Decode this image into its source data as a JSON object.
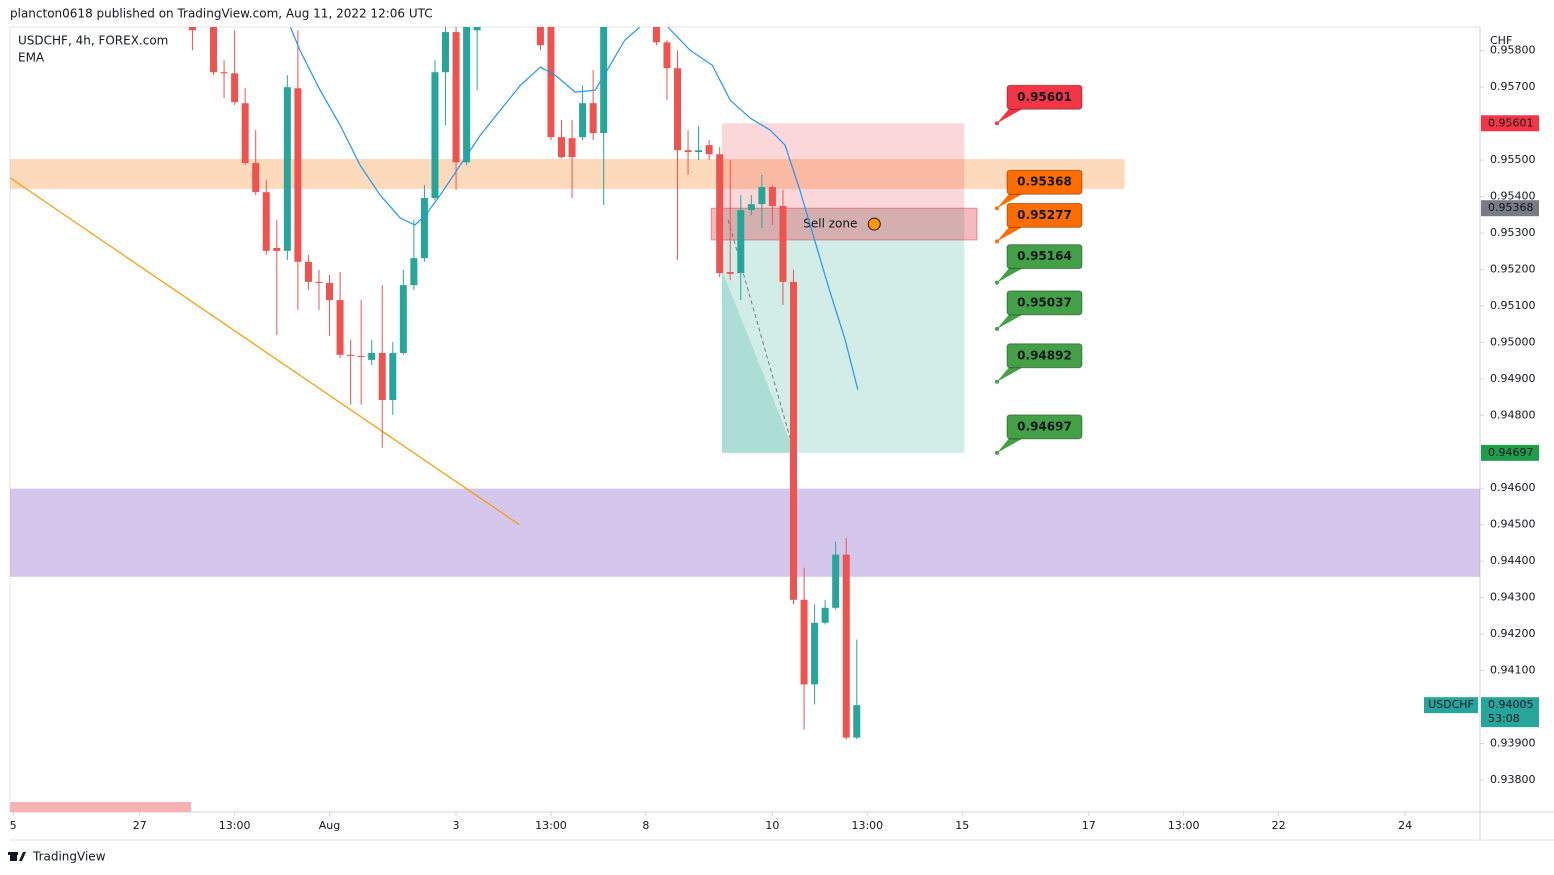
{
  "header": "plancton0618 published on TradingView.com, Aug 11, 2022 12:06 UTC",
  "footer": "TradingView",
  "chart_data": {
    "type": "candlestick",
    "title": "USDCHF, 4h, FOREX.com",
    "currency": "CHF",
    "up_color": "#26a69a",
    "down_color": "#ef5350",
    "x": [
      17,
      19,
      20,
      21,
      22,
      23,
      24,
      25,
      26,
      27,
      28,
      29,
      30,
      31,
      32,
      33,
      34,
      35,
      36,
      37,
      38,
      39,
      40,
      41,
      42,
      43,
      44,
      50,
      51,
      52,
      53,
      54,
      55,
      56,
      61,
      62,
      63,
      64,
      65,
      66,
      67,
      68,
      69,
      70,
      71,
      72,
      73,
      74,
      75,
      76,
      77,
      78,
      79,
      80
    ],
    "open": [
      0.95911,
      0.95884,
      0.95741,
      0.95738,
      0.95656,
      0.95492,
      0.95412,
      0.95259,
      0.95251,
      0.95697,
      0.95221,
      0.95166,
      0.95163,
      0.95116,
      0.94966,
      0.94963,
      0.94952,
      0.94971,
      0.94842,
      0.94971,
      0.95157,
      0.95231,
      0.95396,
      0.95741,
      0.95851,
      0.95494,
      0.95856,
      0.95884,
      0.95884,
      0.95563,
      0.9556,
      0.95563,
      0.95656,
      0.95574,
      0.95884,
      0.95823,
      0.95752,
      0.95527,
      0.95522,
      0.95541,
      0.95516,
      0.95193,
      0.9519,
      0.95363,
      0.95379,
      0.95426,
      0.95374,
      0.95166,
      0.94294,
      0.94062,
      0.94231,
      0.94272,
      0.94418,
      0.93916
    ],
    "high": [
      0.95925,
      0.95911,
      0.95774,
      0.95856,
      0.95697,
      0.95582,
      0.95445,
      0.95336,
      0.95733,
      0.95856,
      0.9524,
      0.95199,
      0.95185,
      0.95193,
      0.95007,
      0.95116,
      0.95007,
      0.95157,
      0.95001,
      0.95199,
      0.95336,
      0.95431,
      0.95774,
      0.95884,
      0.9587,
      0.95911,
      0.95911,
      0.95911,
      0.95911,
      0.9561,
      0.9561,
      0.95705,
      0.95747,
      0.95911,
      0.95897,
      0.95829,
      0.95801,
      0.95582,
      0.95593,
      0.95555,
      0.95536,
      0.955,
      0.95404,
      0.95404,
      0.95459,
      0.95431,
      0.95418,
      0.95199,
      0.94382,
      0.94281,
      0.94294,
      0.94453,
      0.94464,
      0.94185
    ],
    "low": [
      0.95801,
      0.95733,
      0.9567,
      0.95651,
      0.95486,
      0.95404,
      0.9524,
      0.9502,
      0.95226,
      0.95089,
      0.95144,
      0.95089,
      0.95018,
      0.94957,
      0.94829,
      0.94829,
      0.94938,
      0.94711,
      0.94801,
      0.94966,
      0.95144,
      0.95221,
      0.9539,
      0.95596,
      0.95418,
      0.95486,
      0.95692,
      0.95801,
      0.95555,
      0.95505,
      0.95396,
      0.95555,
      0.95555,
      0.95377,
      0.95815,
      0.95664,
      0.95226,
      0.95459,
      0.955,
      0.955,
      0.95179,
      0.95171,
      0.95116,
      0.95349,
      0.95314,
      0.95322,
      0.95103,
      0.94281,
      0.93938,
      0.94007,
      0.94226,
      0.94267,
      0.93911,
      0.93911
    ],
    "close": [
      0.95856,
      0.95741,
      0.95738,
      0.95659,
      0.95492,
      0.95412,
      0.95251,
      0.95251,
      0.957,
      0.95221,
      0.95166,
      0.95163,
      0.95116,
      0.94966,
      0.94963,
      0.9496,
      0.94971,
      0.94842,
      0.94971,
      0.95157,
      0.95231,
      0.95396,
      0.95741,
      0.95851,
      0.95494,
      0.95878,
      0.95884,
      0.95815,
      0.95563,
      0.95508,
      0.95508,
      0.95656,
      0.95574,
      0.9587,
      0.95823,
      0.95752,
      0.95527,
      0.95522,
      0.95527,
      0.95516,
      0.9519,
      0.95188,
      0.95363,
      0.95379,
      0.95426,
      0.95374,
      0.95166,
      0.94294,
      0.94062,
      0.94231,
      0.94272,
      0.94418,
      0.93916,
      0.94005
    ],
    "ema": {
      "name": "EMA",
      "color": "#2196f3",
      "x": [
        26.3,
        27.2,
        29.1,
        31.0,
        32.9,
        34.8,
        36.7,
        38.1,
        39.1,
        40.5,
        42.4,
        44.3,
        46.2,
        48.1,
        50.0,
        51.4,
        53.3,
        55.2,
        56.6,
        58.0,
        59.4,
        null,
        62.1,
        64.2,
        66.3,
        68.0,
        69.9,
        71.8,
        73.2,
        74.6,
        76.0,
        77.4,
        78.9,
        80.1
      ],
      "values": [
        0.95864,
        0.95801,
        0.95692,
        0.95596,
        0.95486,
        0.95404,
        0.95341,
        0.95322,
        0.95349,
        0.95404,
        0.95486,
        0.95568,
        0.95637,
        0.95705,
        0.95755,
        0.95733,
        0.95686,
        0.95692,
        0.9576,
        0.95829,
        0.95864,
        null,
        0.95864,
        0.95801,
        0.9576,
        0.95664,
        0.95615,
        0.95582,
        0.95541,
        0.95418,
        0.95281,
        0.95144,
        0.95007,
        0.9487
      ]
    },
    "trend_line": {
      "color": "#ff9800",
      "x": [
        -0.28,
        48.0
      ],
      "y": [
        0.95451,
        0.945
      ]
    },
    "projection": {
      "color": "#787b86",
      "x": [
        67.8,
        74.0
      ],
      "y": [
        0.95336,
        0.94705
      ]
    },
    "zones": [
      {
        "x": [
          -0.3,
          105.4
        ],
        "y": [
          0.95421,
          0.95503
        ],
        "color": "rgba(245,150,60,0.35)"
      },
      {
        "x": [
          -0.3,
          139.1
        ],
        "y": [
          0.94357,
          0.94599
        ],
        "color": "rgba(160,130,210,0.45)"
      }
    ],
    "position": {
      "x": [
        67.2,
        90.2
      ],
      "stop": 0.95601,
      "entry": 0.95368,
      "target": 0.94697,
      "stop_color": "rgba(242,54,69,0.2)",
      "target_color": "rgba(8,153,129,0.18)"
    },
    "sell_zone": {
      "label": "Sell zone",
      "x": [
        66.2,
        91.4
      ],
      "y": [
        0.95281,
        0.95368
      ],
      "color": "rgba(220,60,70,0.35)"
    },
    "callouts": [
      {
        "value": 0.95601,
        "label": "0.95601",
        "color": "#f23645"
      },
      {
        "value": 0.95368,
        "label": "0.95368",
        "color": "#ff6d00"
      },
      {
        "value": 0.95277,
        "label": "0.95277",
        "color": "#ff6d00"
      },
      {
        "value": 0.95164,
        "label": "0.95164",
        "color": "#43a047"
      },
      {
        "value": 0.95037,
        "label": "0.95037",
        "color": "#43a047"
      },
      {
        "value": 0.94892,
        "label": "0.94892",
        "color": "#43a047"
      },
      {
        "value": 0.94697,
        "label": "0.94697",
        "color": "#43a047"
      }
    ],
    "axis_labels": [
      {
        "value": 0.95601,
        "label": "0.95601",
        "color": "#f23645"
      },
      {
        "value": 0.95368,
        "label": "0.95368",
        "color": "#787b86"
      },
      {
        "value": 0.94697,
        "label": "0.94697",
        "color": "#1e9e4a"
      }
    ],
    "last_price": {
      "symbol": "USDCHF",
      "value": 0.94005,
      "label": "0.94005",
      "countdown": "53:08",
      "color": "#26a69a"
    },
    "xlim": [
      -0.3,
      139.1
    ],
    "xticks": [
      {
        "value": 0,
        "label": "5"
      },
      {
        "value": 12,
        "label": "27"
      },
      {
        "value": 21,
        "label": "13:00"
      },
      {
        "value": 30,
        "label": "Aug"
      },
      {
        "value": 42,
        "label": "3"
      },
      {
        "value": 51,
        "label": "13:00"
      },
      {
        "value": 60,
        "label": "8"
      },
      {
        "value": 72,
        "label": "10"
      },
      {
        "value": 81,
        "label": "13:00"
      },
      {
        "value": 90,
        "label": "15"
      },
      {
        "value": 102,
        "label": "17"
      },
      {
        "value": 111,
        "label": "13:00"
      },
      {
        "value": 120,
        "label": "22"
      },
      {
        "value": 132,
        "label": "24"
      }
    ],
    "ylim": [
      0.93712,
      0.95865
    ],
    "yticks": [
      {
        "value": 0.938,
        "label": "0.93800"
      },
      {
        "value": 0.939,
        "label": "0.93900"
      },
      {
        "value": 0.94,
        "label": "0.94000"
      },
      {
        "value": 0.941,
        "label": "0.94100"
      },
      {
        "value": 0.942,
        "label": "0.94200"
      },
      {
        "value": 0.943,
        "label": "0.94300"
      },
      {
        "value": 0.944,
        "label": "0.94400"
      },
      {
        "value": 0.945,
        "label": "0.94500"
      },
      {
        "value": 0.946,
        "label": "0.94600"
      },
      {
        "value": 0.947,
        "label": "0.94700"
      },
      {
        "value": 0.948,
        "label": "0.94800"
      },
      {
        "value": 0.949,
        "label": "0.94900"
      },
      {
        "value": 0.95,
        "label": "0.95000"
      },
      {
        "value": 0.951,
        "label": "0.95100"
      },
      {
        "value": 0.952,
        "label": "0.95200"
      },
      {
        "value": 0.953,
        "label": "0.95300"
      },
      {
        "value": 0.954,
        "label": "0.95400"
      },
      {
        "value": 0.955,
        "label": "0.95500"
      },
      {
        "value": 0.956,
        "label": "0.95600"
      },
      {
        "value": 0.957,
        "label": "0.95700"
      },
      {
        "value": 0.958,
        "label": "0.95800"
      }
    ],
    "grid": false
  }
}
